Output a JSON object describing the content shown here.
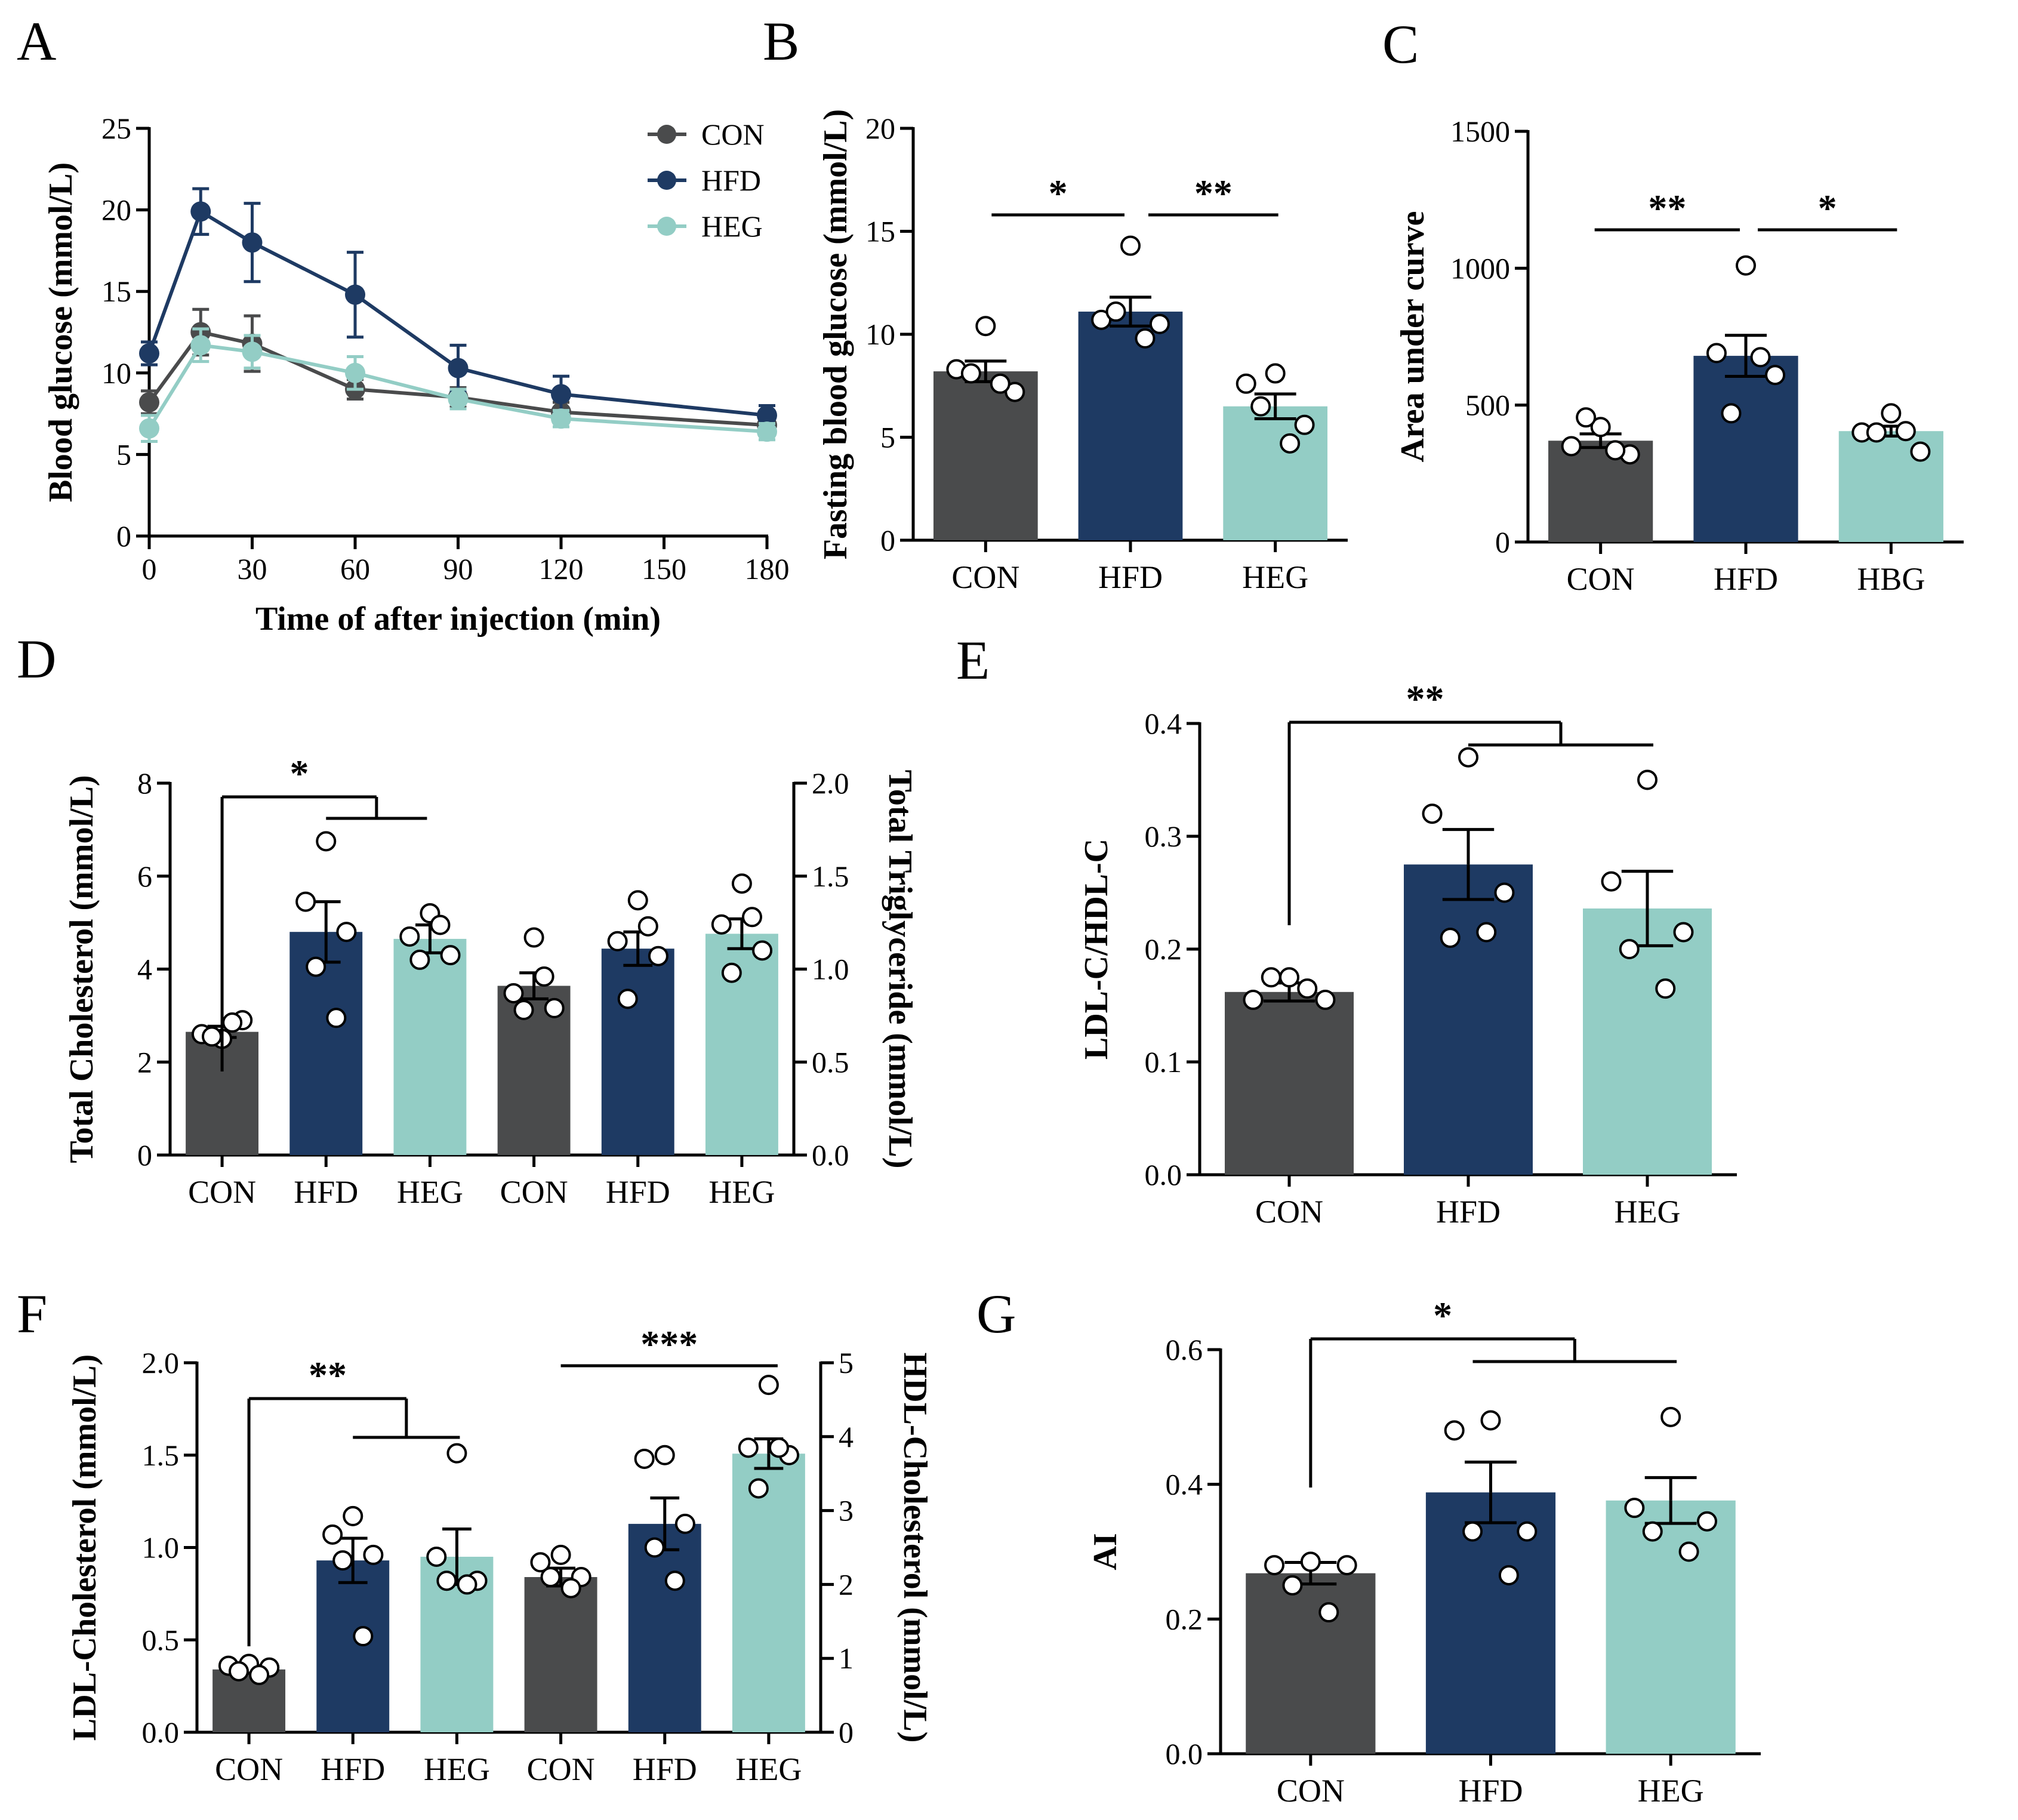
{
  "colors": {
    "CON": "#4a4b4c",
    "HFD": "#1e3a63",
    "HEG": "#93cdc5",
    "axis": "#000000",
    "dot_fill": "#ffffff"
  },
  "chart_data": [
    {
      "panel": "A",
      "type": "line",
      "xlabel": "Time of after injection (min)",
      "ylabel": "Blood glucose (mmol/L)",
      "xlim": [
        0,
        180
      ],
      "ylim": [
        0,
        25
      ],
      "xticks": [
        0,
        30,
        60,
        90,
        120,
        150,
        180
      ],
      "yticks": [
        0,
        5,
        10,
        15,
        20,
        25
      ],
      "x": [
        0,
        15,
        30,
        60,
        90,
        120,
        180
      ],
      "legend_position": "top-right",
      "series": [
        {
          "name": "CON",
          "values": [
            8.2,
            12.5,
            11.8,
            9.0,
            8.5,
            7.6,
            6.8
          ],
          "err": [
            0.7,
            1.4,
            1.7,
            0.6,
            0.6,
            0.6,
            0.6
          ]
        },
        {
          "name": "HFD",
          "values": [
            11.2,
            19.9,
            18.0,
            14.8,
            10.3,
            8.7,
            7.4
          ],
          "err": [
            0.7,
            1.4,
            2.4,
            2.6,
            1.4,
            1.1,
            0.6
          ]
        },
        {
          "name": "HEG",
          "values": [
            6.6,
            11.7,
            11.3,
            10.0,
            8.4,
            7.2,
            6.4
          ],
          "err": [
            0.8,
            1.0,
            1.0,
            1.0,
            0.6,
            0.5,
            0.5
          ]
        }
      ]
    },
    {
      "panel": "B",
      "type": "bar",
      "ylabel": "Fasting blood glucose (mmol/L)",
      "ylim": [
        0,
        20
      ],
      "yticks": [
        0,
        5,
        10,
        15,
        20
      ],
      "categories": [
        "CON",
        "HFD",
        "HEG"
      ],
      "values": [
        8.2,
        11.1,
        6.5
      ],
      "err": [
        0.5,
        0.7,
        0.6
      ],
      "points": [
        [
          10.4,
          8.3,
          7.2,
          8.1,
          7.6
        ],
        [
          14.3,
          10.7,
          10.5,
          11.1,
          9.8
        ],
        [
          8.1,
          7.6,
          5.6,
          6.5,
          4.7
        ]
      ],
      "significance": [
        {
          "between": [
            "CON",
            "HFD"
          ],
          "label": "*"
        },
        {
          "between": [
            "HFD",
            "HEG"
          ],
          "label": "**"
        }
      ]
    },
    {
      "panel": "C",
      "type": "bar",
      "ylabel": "Area under curve",
      "ylim": [
        0,
        1500
      ],
      "yticks": [
        0,
        500,
        1000,
        1500
      ],
      "categories": [
        "CON",
        "HFD",
        "HBG"
      ],
      "values": [
        370,
        680,
        405
      ],
      "err": [
        25,
        75,
        18
      ],
      "points": [
        [
          420,
          350,
          320,
          455,
          335
        ],
        [
          1010,
          690,
          610,
          470,
          675
        ],
        [
          470,
          400,
          330,
          400,
          405
        ]
      ],
      "significance": [
        {
          "between": [
            "CON",
            "HFD"
          ],
          "label": "**"
        },
        {
          "between": [
            "HFD",
            "HBG"
          ],
          "label": "*"
        }
      ]
    },
    {
      "panel": "D",
      "type": "bar",
      "ylabel_left": "Total Cholesterol (mmol/L)",
      "ylabel_right": "Total Triglyceride (mmol/L)",
      "ylim_left": [
        0,
        8
      ],
      "yticks_left": [
        0,
        2,
        4,
        6,
        8
      ],
      "ylim_right": [
        0,
        2.0
      ],
      "yticks_right": [
        "0.0",
        "0.5",
        "1.0",
        "1.5",
        "2.0"
      ],
      "categories": [
        "CON",
        "HFD",
        "HEG",
        "CON",
        "HFD",
        "HEG"
      ],
      "groups": [
        {
          "axis": "left",
          "label": "CON",
          "value": 2.65,
          "err": 0.12,
          "points": [
            2.5,
            2.6,
            2.9,
            2.55,
            2.85
          ]
        },
        {
          "axis": "left",
          "label": "HFD",
          "value": 4.8,
          "err": 0.65,
          "points": [
            6.75,
            5.45,
            4.8,
            4.05,
            2.95
          ]
        },
        {
          "axis": "left",
          "label": "HEG",
          "value": 4.65,
          "err": 0.3,
          "points": [
            5.2,
            4.7,
            4.3,
            4.2,
            4.95
          ]
        },
        {
          "axis": "right",
          "label": "CON",
          "value": 0.91,
          "err": 0.07,
          "points": [
            1.17,
            0.87,
            0.79,
            0.78,
            0.96
          ]
        },
        {
          "axis": "right",
          "label": "HFD",
          "value": 1.11,
          "err": 0.09,
          "points": [
            1.37,
            1.15,
            1.07,
            0.84,
            1.23
          ]
        },
        {
          "axis": "right",
          "label": "HEG",
          "value": 1.19,
          "err": 0.08,
          "points": [
            1.46,
            1.24,
            1.1,
            0.98,
            1.28
          ]
        }
      ],
      "significance": [
        {
          "between": [
            "CON",
            "HFD+HEG"
          ],
          "label": "*"
        }
      ]
    },
    {
      "panel": "E",
      "type": "bar",
      "ylabel": "LDL-C/HDL-C",
      "ylim": [
        0,
        0.4
      ],
      "yticks": [
        "0.0",
        "0.1",
        "0.2",
        "0.3",
        "0.4"
      ],
      "categories": [
        "CON",
        "HFD",
        "HEG"
      ],
      "values": [
        0.162,
        0.275,
        0.236
      ],
      "err": [
        0.008,
        0.031,
        0.033
      ],
      "points": [
        [
          0.175,
          0.155,
          0.155,
          0.175,
          0.165
        ],
        [
          0.37,
          0.32,
          0.25,
          0.21,
          0.215
        ],
        [
          0.35,
          0.26,
          0.215,
          0.2,
          0.165
        ]
      ],
      "significance": [
        {
          "between": [
            "CON",
            "HFD+HEG"
          ],
          "label": "**"
        }
      ]
    },
    {
      "panel": "F",
      "type": "bar",
      "ylabel_left": "LDL-Cholesterol (mmol/L)",
      "ylabel_right": "HDL-Cholesterol (mmol/L)",
      "ylim_left": [
        0,
        2.0
      ],
      "yticks_left": [
        "0.0",
        "0.5",
        "1.0",
        "1.5",
        "2.0"
      ],
      "ylim_right": [
        0,
        5
      ],
      "yticks_right": [
        "0",
        "1",
        "2",
        "3",
        "4",
        "5"
      ],
      "categories": [
        "CON",
        "HFD",
        "HEG",
        "CON",
        "HFD",
        "HEG"
      ],
      "groups": [
        {
          "axis": "left",
          "label": "CON",
          "value": 0.34,
          "err": 0.02,
          "points": [
            0.37,
            0.36,
            0.35,
            0.33,
            0.31
          ]
        },
        {
          "axis": "left",
          "label": "HFD",
          "value": 0.93,
          "err": 0.12,
          "points": [
            1.17,
            1.07,
            0.96,
            0.93,
            0.52
          ]
        },
        {
          "axis": "left",
          "label": "HEG",
          "value": 0.95,
          "err": 0.15,
          "points": [
            1.51,
            0.95,
            0.82,
            0.82,
            0.8
          ]
        },
        {
          "axis": "right",
          "label": "CON",
          "value": 2.1,
          "err": 0.12,
          "points": [
            2.4,
            2.3,
            2.1,
            2.1,
            1.95
          ]
        },
        {
          "axis": "right",
          "label": "HFD",
          "value": 2.82,
          "err": 0.35,
          "points": [
            3.75,
            3.7,
            2.82,
            2.5,
            2.05
          ]
        },
        {
          "axis": "right",
          "label": "HEG",
          "value": 3.77,
          "err": 0.2,
          "points": [
            4.7,
            3.85,
            3.75,
            3.3,
            3.85
          ]
        }
      ],
      "significance": [
        {
          "between": [
            "CON",
            "HFD+HEG"
          ],
          "axis": "left",
          "label": "**"
        },
        {
          "between": [
            "CON",
            "HEG"
          ],
          "axis": "right",
          "label": "***"
        }
      ]
    },
    {
      "panel": "G",
      "type": "bar",
      "ylabel": "AI",
      "ylim": [
        0,
        0.6
      ],
      "yticks": [
        "0.0",
        "0.2",
        "0.4",
        "0.6"
      ],
      "categories": [
        "CON",
        "HFD",
        "HEG"
      ],
      "values": [
        0.268,
        0.388,
        0.376
      ],
      "err": [
        0.016,
        0.045,
        0.034
      ],
      "points": [
        [
          0.285,
          0.28,
          0.28,
          0.25,
          0.21
        ],
        [
          0.495,
          0.48,
          0.33,
          0.33,
          0.265
        ],
        [
          0.5,
          0.365,
          0.345,
          0.33,
          0.3
        ]
      ],
      "significance": [
        {
          "between": [
            "CON",
            "HFD+HEG"
          ],
          "label": "*"
        }
      ]
    }
  ]
}
